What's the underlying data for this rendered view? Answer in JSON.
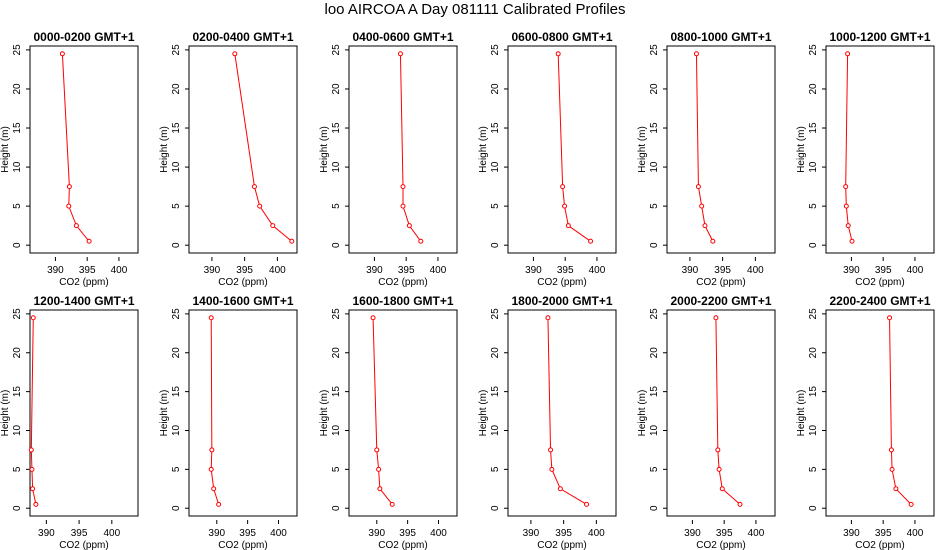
{
  "figure": {
    "title": "loo AIRCOA A  Day 081111  Calibrated Profiles"
  },
  "chart_data": [
    {
      "type": "line",
      "title": "0000-0200 GMT+1",
      "xlabel": "CO2 (ppm)",
      "ylabel": "Height (m)",
      "xlim": [
        386,
        403
      ],
      "ylim": [
        -1,
        25.5
      ],
      "xticks": [
        390,
        395,
        400
      ],
      "yticks": [
        0,
        5,
        10,
        15,
        20,
        25
      ],
      "series": [
        {
          "color": "#ff0000",
          "x": [
            395.3,
            393.3,
            392.1,
            392.2,
            391.1
          ],
          "y": [
            0.5,
            2.5,
            5,
            7.5,
            24.5
          ]
        }
      ]
    },
    {
      "type": "line",
      "title": "0200-0400 GMT+1",
      "xlabel": "CO2 (ppm)",
      "ylabel": "Height (m)",
      "xlim": [
        386.5,
        403
      ],
      "ylim": [
        -1,
        25.5
      ],
      "xticks": [
        390,
        395,
        400
      ],
      "yticks": [
        0,
        5,
        10,
        15,
        20,
        25
      ],
      "series": [
        {
          "color": "#ff0000",
          "x": [
            402.2,
            399.3,
            397.3,
            396.5,
            393.5
          ],
          "y": [
            0.5,
            2.5,
            5,
            7.5,
            24.5
          ]
        }
      ]
    },
    {
      "type": "line",
      "title": "0400-0600 GMT+1",
      "xlabel": "CO2 (ppm)",
      "ylabel": "Height (m)",
      "xlim": [
        386,
        403
      ],
      "ylim": [
        -1,
        25.5
      ],
      "xticks": [
        390,
        395,
        400
      ],
      "yticks": [
        0,
        5,
        10,
        15,
        20,
        25
      ],
      "series": [
        {
          "color": "#ff0000",
          "x": [
            397.3,
            395.5,
            394.5,
            394.5,
            394.1
          ],
          "y": [
            0.5,
            2.5,
            5,
            7.5,
            24.5
          ]
        }
      ]
    },
    {
      "type": "line",
      "title": "0600-0800 GMT+1",
      "xlabel": "CO2 (ppm)",
      "ylabel": "Height (m)",
      "xlim": [
        386,
        403
      ],
      "ylim": [
        -1,
        25.5
      ],
      "xticks": [
        390,
        395,
        400
      ],
      "yticks": [
        0,
        5,
        10,
        15,
        20,
        25
      ],
      "series": [
        {
          "color": "#ff0000",
          "x": [
            399,
            395.5,
            394.9,
            394.6,
            393.9
          ],
          "y": [
            0.5,
            2.5,
            5,
            7.5,
            24.5
          ]
        }
      ]
    },
    {
      "type": "line",
      "title": "0800-1000 GMT+1",
      "xlabel": "CO2 (ppm)",
      "ylabel": "Height (m)",
      "xlim": [
        386.5,
        403
      ],
      "ylim": [
        -1,
        25.5
      ],
      "xticks": [
        390,
        395,
        400
      ],
      "yticks": [
        0,
        5,
        10,
        15,
        20,
        25
      ],
      "series": [
        {
          "color": "#ff0000",
          "x": [
            393.5,
            392.3,
            391.8,
            391.3,
            391.0
          ],
          "y": [
            0.5,
            2.5,
            5,
            7.5,
            24.5
          ]
        }
      ]
    },
    {
      "type": "line",
      "title": "1000-1200 GMT+1",
      "xlabel": "CO2 (ppm)",
      "ylabel": "Height (m)",
      "xlim": [
        386,
        403
      ],
      "ylim": [
        -1,
        25.5
      ],
      "xticks": [
        390,
        395,
        400
      ],
      "yticks": [
        0,
        5,
        10,
        15,
        20,
        25
      ],
      "series": [
        {
          "color": "#ff0000",
          "x": [
            390.1,
            389.5,
            389.2,
            389.1,
            389.4
          ],
          "y": [
            0.5,
            2.5,
            5,
            7.5,
            24.5
          ]
        }
      ]
    },
    {
      "type": "line",
      "title": "1200-1400 GMT+1",
      "xlabel": "CO2 (ppm)",
      "ylabel": "Height (m)",
      "xlim": [
        387.5,
        404
      ],
      "ylim": [
        -1,
        25.5
      ],
      "xticks": [
        390,
        395,
        400
      ],
      "yticks": [
        0,
        5,
        10,
        15,
        20,
        25
      ],
      "series": [
        {
          "color": "#ff0000",
          "x": [
            388.4,
            387.9,
            387.8,
            387.7,
            388.0
          ],
          "y": [
            0.5,
            2.5,
            5,
            7.5,
            24.5
          ]
        }
      ]
    },
    {
      "type": "line",
      "title": "1400-1600 GMT+1",
      "xlabel": "CO2 (ppm)",
      "ylabel": "Height (m)",
      "xlim": [
        385.5,
        403
      ],
      "ylim": [
        -1,
        25.5
      ],
      "xticks": [
        390,
        395,
        400
      ],
      "yticks": [
        0,
        5,
        10,
        15,
        20,
        25
      ],
      "series": [
        {
          "color": "#ff0000",
          "x": [
            390.3,
            389.5,
            389.1,
            389.2,
            389.1
          ],
          "y": [
            0.5,
            2.5,
            5,
            7.5,
            24.5
          ]
        }
      ]
    },
    {
      "type": "line",
      "title": "1600-1800 GMT+1",
      "xlabel": "CO2 (ppm)",
      "ylabel": "Height (m)",
      "xlim": [
        385.5,
        403
      ],
      "ylim": [
        -1,
        25.5
      ],
      "xticks": [
        390,
        395,
        400
      ],
      "yticks": [
        0,
        5,
        10,
        15,
        20,
        25
      ],
      "series": [
        {
          "color": "#ff0000",
          "x": [
            392.5,
            390.5,
            390.3,
            390.0,
            389.4
          ],
          "y": [
            0.5,
            2.5,
            5,
            7.5,
            24.5
          ]
        }
      ]
    },
    {
      "type": "line",
      "title": "1800-2000 GMT+1",
      "xlabel": "CO2 (ppm)",
      "ylabel": "Height (m)",
      "xlim": [
        386.5,
        403
      ],
      "ylim": [
        -1,
        25.5
      ],
      "xticks": [
        390,
        395,
        400
      ],
      "yticks": [
        0,
        5,
        10,
        15,
        20,
        25
      ],
      "series": [
        {
          "color": "#ff0000",
          "x": [
            398.5,
            394.5,
            393.2,
            393.0,
            392.6
          ],
          "y": [
            0.5,
            2.5,
            5,
            7.5,
            24.5
          ]
        }
      ]
    },
    {
      "type": "line",
      "title": "2000-2200 GMT+1",
      "xlabel": "CO2 (ppm)",
      "ylabel": "Height (m)",
      "xlim": [
        386,
        403
      ],
      "ylim": [
        -1,
        25.5
      ],
      "xticks": [
        390,
        395,
        400
      ],
      "yticks": [
        0,
        5,
        10,
        15,
        20,
        25
      ],
      "series": [
        {
          "color": "#ff0000",
          "x": [
            397.5,
            394.7,
            394.2,
            394.0,
            393.7
          ],
          "y": [
            0.5,
            2.5,
            5,
            7.5,
            24.5
          ]
        }
      ]
    },
    {
      "type": "line",
      "title": "2200-2400 GMT+1",
      "xlabel": "CO2 (ppm)",
      "ylabel": "Height (m)",
      "xlim": [
        386,
        403
      ],
      "ylim": [
        -1,
        25.5
      ],
      "xticks": [
        390,
        395,
        400
      ],
      "yticks": [
        0,
        5,
        10,
        15,
        20,
        25
      ],
      "series": [
        {
          "color": "#ff0000",
          "x": [
            399.4,
            397.0,
            396.4,
            396.3,
            396.0
          ],
          "y": [
            0.5,
            2.5,
            5,
            7.5,
            24.5
          ]
        }
      ]
    }
  ]
}
